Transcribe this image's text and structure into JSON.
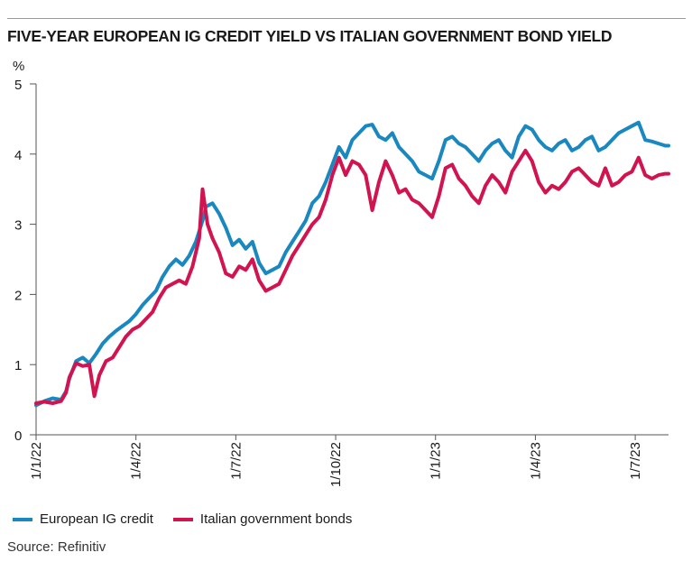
{
  "title": "FIVE-YEAR EUROPEAN IG CREDIT YIELD VS ITALIAN GOVERNMENT BOND YIELD",
  "source": "Source: Refinitiv",
  "chart_data": {
    "type": "line",
    "title": "FIVE-YEAR EUROPEAN IG CREDIT YIELD VS ITALIAN GOVERNMENT BOND YIELD",
    "ylabel": "%",
    "xlabel": "",
    "ylim": [
      0,
      5
    ],
    "yticks": [
      "0",
      "1",
      "2",
      "3",
      "4",
      "5"
    ],
    "x_range_months": [
      0,
      19
    ],
    "xticks": [
      {
        "label": "1/1/22",
        "month": 0
      },
      {
        "label": "1/4/22",
        "month": 3
      },
      {
        "label": "1/7/22",
        "month": 6
      },
      {
        "label": "1/10/22",
        "month": 9
      },
      {
        "label": "1/1/23",
        "month": 12
      },
      {
        "label": "1/4/23",
        "month": 15
      },
      {
        "label": "1/7/23",
        "month": 18
      }
    ],
    "grid": false,
    "legend_position": "bottom",
    "series": [
      {
        "name": "European IG credit",
        "color": "#1a88c0",
        "points": [
          [
            0.0,
            0.42
          ],
          [
            0.25,
            0.48
          ],
          [
            0.5,
            0.52
          ],
          [
            0.75,
            0.5
          ],
          [
            0.9,
            0.62
          ],
          [
            1.0,
            0.8
          ],
          [
            1.2,
            1.05
          ],
          [
            1.4,
            1.1
          ],
          [
            1.6,
            1.02
          ],
          [
            1.8,
            1.15
          ],
          [
            2.0,
            1.3
          ],
          [
            2.2,
            1.4
          ],
          [
            2.4,
            1.48
          ],
          [
            2.6,
            1.55
          ],
          [
            2.8,
            1.62
          ],
          [
            3.0,
            1.72
          ],
          [
            3.2,
            1.85
          ],
          [
            3.4,
            1.95
          ],
          [
            3.6,
            2.05
          ],
          [
            3.8,
            2.25
          ],
          [
            4.0,
            2.4
          ],
          [
            4.2,
            2.5
          ],
          [
            4.4,
            2.42
          ],
          [
            4.6,
            2.55
          ],
          [
            4.8,
            2.75
          ],
          [
            5.0,
            3.05
          ],
          [
            5.1,
            3.25
          ],
          [
            5.3,
            3.3
          ],
          [
            5.5,
            3.15
          ],
          [
            5.7,
            2.95
          ],
          [
            5.9,
            2.7
          ],
          [
            6.1,
            2.78
          ],
          [
            6.3,
            2.65
          ],
          [
            6.5,
            2.75
          ],
          [
            6.7,
            2.45
          ],
          [
            6.9,
            2.3
          ],
          [
            7.1,
            2.35
          ],
          [
            7.3,
            2.4
          ],
          [
            7.5,
            2.6
          ],
          [
            7.7,
            2.75
          ],
          [
            7.9,
            2.9
          ],
          [
            8.1,
            3.05
          ],
          [
            8.3,
            3.3
          ],
          [
            8.5,
            3.4
          ],
          [
            8.7,
            3.6
          ],
          [
            8.9,
            3.85
          ],
          [
            9.1,
            4.1
          ],
          [
            9.3,
            3.95
          ],
          [
            9.5,
            4.2
          ],
          [
            9.7,
            4.3
          ],
          [
            9.9,
            4.4
          ],
          [
            10.1,
            4.42
          ],
          [
            10.3,
            4.25
          ],
          [
            10.5,
            4.2
          ],
          [
            10.7,
            4.3
          ],
          [
            10.9,
            4.1
          ],
          [
            11.1,
            4.0
          ],
          [
            11.3,
            3.9
          ],
          [
            11.5,
            3.75
          ],
          [
            11.7,
            3.7
          ],
          [
            11.9,
            3.65
          ],
          [
            12.1,
            3.9
          ],
          [
            12.3,
            4.2
          ],
          [
            12.5,
            4.25
          ],
          [
            12.7,
            4.15
          ],
          [
            12.9,
            4.1
          ],
          [
            13.1,
            4.0
          ],
          [
            13.3,
            3.9
          ],
          [
            13.5,
            4.05
          ],
          [
            13.7,
            4.15
          ],
          [
            13.9,
            4.2
          ],
          [
            14.1,
            4.05
          ],
          [
            14.3,
            3.95
          ],
          [
            14.5,
            4.25
          ],
          [
            14.7,
            4.4
          ],
          [
            14.9,
            4.35
          ],
          [
            15.1,
            4.2
          ],
          [
            15.3,
            4.1
          ],
          [
            15.5,
            4.05
          ],
          [
            15.7,
            4.15
          ],
          [
            15.9,
            4.2
          ],
          [
            16.1,
            4.05
          ],
          [
            16.3,
            4.1
          ],
          [
            16.5,
            4.2
          ],
          [
            16.7,
            4.25
          ],
          [
            16.9,
            4.05
          ],
          [
            17.1,
            4.1
          ],
          [
            17.3,
            4.2
          ],
          [
            17.5,
            4.3
          ],
          [
            17.7,
            4.35
          ],
          [
            17.9,
            4.4
          ],
          [
            18.1,
            4.45
          ],
          [
            18.3,
            4.2
          ],
          [
            18.5,
            4.18
          ],
          [
            18.7,
            4.15
          ],
          [
            18.9,
            4.12
          ],
          [
            19.0,
            4.12
          ]
        ]
      },
      {
        "name": "Italian government bonds",
        "color": "#d1144f",
        "points": [
          [
            0.0,
            0.45
          ],
          [
            0.25,
            0.47
          ],
          [
            0.5,
            0.45
          ],
          [
            0.75,
            0.48
          ],
          [
            0.9,
            0.6
          ],
          [
            1.0,
            0.82
          ],
          [
            1.2,
            1.02
          ],
          [
            1.4,
            0.98
          ],
          [
            1.6,
            1.0
          ],
          [
            1.75,
            0.55
          ],
          [
            1.9,
            0.85
          ],
          [
            2.1,
            1.05
          ],
          [
            2.3,
            1.1
          ],
          [
            2.5,
            1.25
          ],
          [
            2.7,
            1.4
          ],
          [
            2.9,
            1.5
          ],
          [
            3.1,
            1.55
          ],
          [
            3.3,
            1.65
          ],
          [
            3.5,
            1.75
          ],
          [
            3.7,
            1.95
          ],
          [
            3.9,
            2.1
          ],
          [
            4.1,
            2.15
          ],
          [
            4.3,
            2.2
          ],
          [
            4.5,
            2.15
          ],
          [
            4.7,
            2.4
          ],
          [
            4.9,
            2.8
          ],
          [
            5.0,
            3.5
          ],
          [
            5.15,
            3.0
          ],
          [
            5.3,
            2.8
          ],
          [
            5.5,
            2.6
          ],
          [
            5.7,
            2.3
          ],
          [
            5.9,
            2.25
          ],
          [
            6.1,
            2.4
          ],
          [
            6.3,
            2.35
          ],
          [
            6.5,
            2.5
          ],
          [
            6.7,
            2.2
          ],
          [
            6.9,
            2.05
          ],
          [
            7.1,
            2.1
          ],
          [
            7.3,
            2.15
          ],
          [
            7.5,
            2.35
          ],
          [
            7.7,
            2.55
          ],
          [
            7.9,
            2.7
          ],
          [
            8.1,
            2.85
          ],
          [
            8.3,
            3.0
          ],
          [
            8.5,
            3.1
          ],
          [
            8.7,
            3.35
          ],
          [
            8.9,
            3.7
          ],
          [
            9.1,
            3.95
          ],
          [
            9.3,
            3.7
          ],
          [
            9.5,
            3.9
          ],
          [
            9.7,
            3.85
          ],
          [
            9.9,
            3.7
          ],
          [
            10.1,
            3.2
          ],
          [
            10.3,
            3.6
          ],
          [
            10.5,
            3.9
          ],
          [
            10.7,
            3.7
          ],
          [
            10.9,
            3.45
          ],
          [
            11.1,
            3.5
          ],
          [
            11.3,
            3.35
          ],
          [
            11.5,
            3.3
          ],
          [
            11.7,
            3.2
          ],
          [
            11.9,
            3.1
          ],
          [
            12.1,
            3.4
          ],
          [
            12.3,
            3.8
          ],
          [
            12.5,
            3.85
          ],
          [
            12.7,
            3.65
          ],
          [
            12.9,
            3.55
          ],
          [
            13.1,
            3.4
          ],
          [
            13.3,
            3.3
          ],
          [
            13.5,
            3.55
          ],
          [
            13.7,
            3.7
          ],
          [
            13.9,
            3.6
          ],
          [
            14.1,
            3.45
          ],
          [
            14.3,
            3.75
          ],
          [
            14.5,
            3.9
          ],
          [
            14.7,
            4.05
          ],
          [
            14.9,
            3.9
          ],
          [
            15.1,
            3.6
          ],
          [
            15.3,
            3.45
          ],
          [
            15.5,
            3.55
          ],
          [
            15.7,
            3.5
          ],
          [
            15.9,
            3.6
          ],
          [
            16.1,
            3.75
          ],
          [
            16.3,
            3.8
          ],
          [
            16.5,
            3.7
          ],
          [
            16.7,
            3.6
          ],
          [
            16.9,
            3.55
          ],
          [
            17.1,
            3.8
          ],
          [
            17.3,
            3.55
          ],
          [
            17.5,
            3.6
          ],
          [
            17.7,
            3.7
          ],
          [
            17.9,
            3.75
          ],
          [
            18.1,
            3.95
          ],
          [
            18.3,
            3.7
          ],
          [
            18.5,
            3.65
          ],
          [
            18.7,
            3.7
          ],
          [
            18.9,
            3.72
          ],
          [
            19.0,
            3.72
          ]
        ]
      }
    ]
  }
}
